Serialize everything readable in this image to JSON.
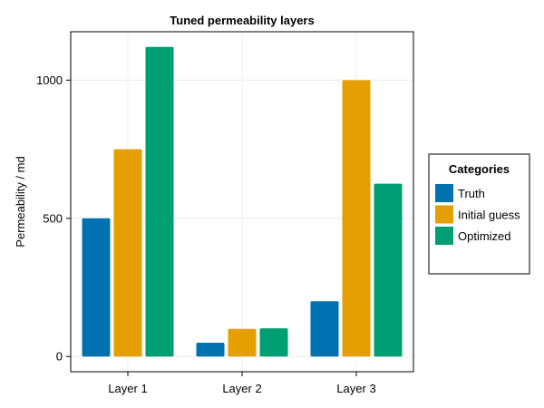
{
  "chart_data": {
    "type": "bar",
    "title": "Tuned permeability layers",
    "xlabel": "",
    "ylabel": "Permeability / md",
    "categories": [
      "Layer 1",
      "Layer 2",
      "Layer 3"
    ],
    "series": [
      {
        "name": "Truth",
        "values": [
          500,
          50,
          200
        ],
        "color": "#0072b2"
      },
      {
        "name": "Initial guess",
        "values": [
          750,
          100,
          1000
        ],
        "color": "#e69f00"
      },
      {
        "name": "Optimized",
        "values": [
          1120,
          102,
          625
        ],
        "color": "#009e73"
      }
    ],
    "yticks": [
      0,
      500,
      1000
    ],
    "ylim": [
      -55,
      1175
    ],
    "grid": true,
    "legend": {
      "title": "Categories",
      "placement": "right"
    }
  }
}
